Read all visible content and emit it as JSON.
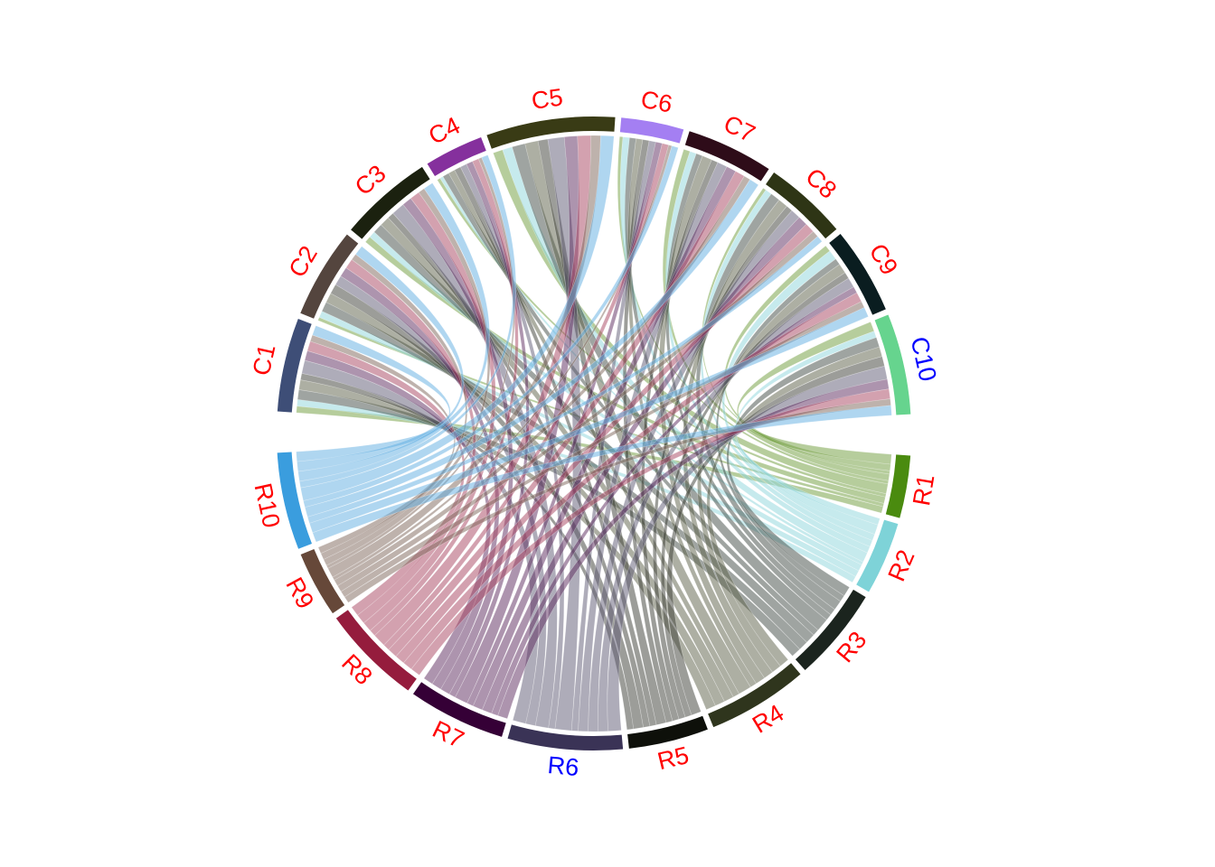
{
  "chart_data": {
    "type": "chord",
    "title": "",
    "sectors": [
      {
        "name": "R1",
        "group": "row",
        "color": "#4A8B0F",
        "label_color": "#FF0000",
        "ribbon_color": "#6E9B3A"
      },
      {
        "name": "R2",
        "group": "row",
        "color": "#7ED3D8",
        "label_color": "#FF0000",
        "ribbon_color": "#8ED6DC"
      },
      {
        "name": "R3",
        "group": "row",
        "color": "#1B241E",
        "label_color": "#FF0000",
        "ribbon_color": "#3F4A44"
      },
      {
        "name": "R4",
        "group": "row",
        "color": "#2F351D",
        "label_color": "#FF0000",
        "ribbon_color": "#5C5F48"
      },
      {
        "name": "R5",
        "group": "row",
        "color": "#0E100A",
        "label_color": "#FF0000",
        "ribbon_color": "#3A3B34"
      },
      {
        "name": "R6",
        "group": "row",
        "color": "#3A3356",
        "label_color": "#0000FF",
        "ribbon_color": "#5E5A74"
      },
      {
        "name": "R7",
        "group": "row",
        "color": "#350036",
        "label_color": "#FF0000",
        "ribbon_color": "#5C2A5E"
      },
      {
        "name": "R8",
        "group": "row",
        "color": "#951C3D",
        "label_color": "#FF0000",
        "ribbon_color": "#A8445F"
      },
      {
        "name": "R9",
        "group": "row",
        "color": "#664839",
        "label_color": "#FF0000",
        "ribbon_color": "#7E6559"
      },
      {
        "name": "R10",
        "group": "row",
        "color": "#3A9DDE",
        "label_color": "#FF0000",
        "ribbon_color": "#5FADE2"
      },
      {
        "name": "C1",
        "group": "col",
        "color": "#3E4E77",
        "label_color": "#FF0000"
      },
      {
        "name": "C2",
        "group": "col",
        "color": "#54453E",
        "label_color": "#FF0000"
      },
      {
        "name": "C3",
        "group": "col",
        "color": "#1B210F",
        "label_color": "#FF0000"
      },
      {
        "name": "C4",
        "group": "col",
        "color": "#85309D",
        "label_color": "#FF0000"
      },
      {
        "name": "C5",
        "group": "col",
        "color": "#393B15",
        "label_color": "#FF0000"
      },
      {
        "name": "C6",
        "group": "col",
        "color": "#A47FF2",
        "label_color": "#FF0000"
      },
      {
        "name": "C7",
        "group": "col",
        "color": "#2E0C19",
        "label_color": "#FF0000"
      },
      {
        "name": "C8",
        "group": "col",
        "color": "#2E3515",
        "label_color": "#FF0000"
      },
      {
        "name": "C9",
        "group": "col",
        "color": "#0A1D20",
        "label_color": "#FF0000"
      },
      {
        "name": "C10",
        "group": "col",
        "color": "#66D48E",
        "label_color": "#0000FF"
      }
    ],
    "sector_order_clockwise_from_right": [
      "R1",
      "R2",
      "R3",
      "R4",
      "R5",
      "R6",
      "R7",
      "R8",
      "R9",
      "R10",
      "C1",
      "C2",
      "C3",
      "C4",
      "C5",
      "C6",
      "C7",
      "C8",
      "C9",
      "C10"
    ],
    "matrix_rows": [
      "R1",
      "R2",
      "R3",
      "R4",
      "R5",
      "R6",
      "R7",
      "R8",
      "R9",
      "R10"
    ],
    "matrix_cols": [
      "C1",
      "C2",
      "C3",
      "C4",
      "C5",
      "C6",
      "C7",
      "C8",
      "C9",
      "C10"
    ],
    "matrix": [
      [
        2,
        1,
        2,
        1,
        3,
        1,
        2,
        1,
        2,
        3
      ],
      [
        2,
        2,
        2,
        1,
        3,
        2,
        2,
        2,
        3,
        2
      ],
      [
        3,
        3,
        3,
        2,
        4,
        2,
        2,
        3,
        2,
        3
      ],
      [
        3,
        3,
        3,
        2,
        4,
        2,
        3,
        3,
        3,
        3
      ],
      [
        2,
        3,
        2,
        2,
        3,
        2,
        2,
        2,
        2,
        3
      ],
      [
        4,
        3,
        4,
        2,
        5,
        2,
        3,
        3,
        3,
        4
      ],
      [
        3,
        3,
        3,
        2,
        4,
        2,
        3,
        3,
        2,
        3
      ],
      [
        3,
        3,
        3,
        2,
        4,
        2,
        3,
        3,
        3,
        3
      ],
      [
        2,
        2,
        2,
        1,
        3,
        1,
        2,
        2,
        2,
        2
      ],
      [
        3,
        3,
        3,
        2,
        4,
        2,
        3,
        2,
        3,
        3
      ]
    ],
    "ribbon_opacity": 0.5,
    "legend": "none"
  }
}
